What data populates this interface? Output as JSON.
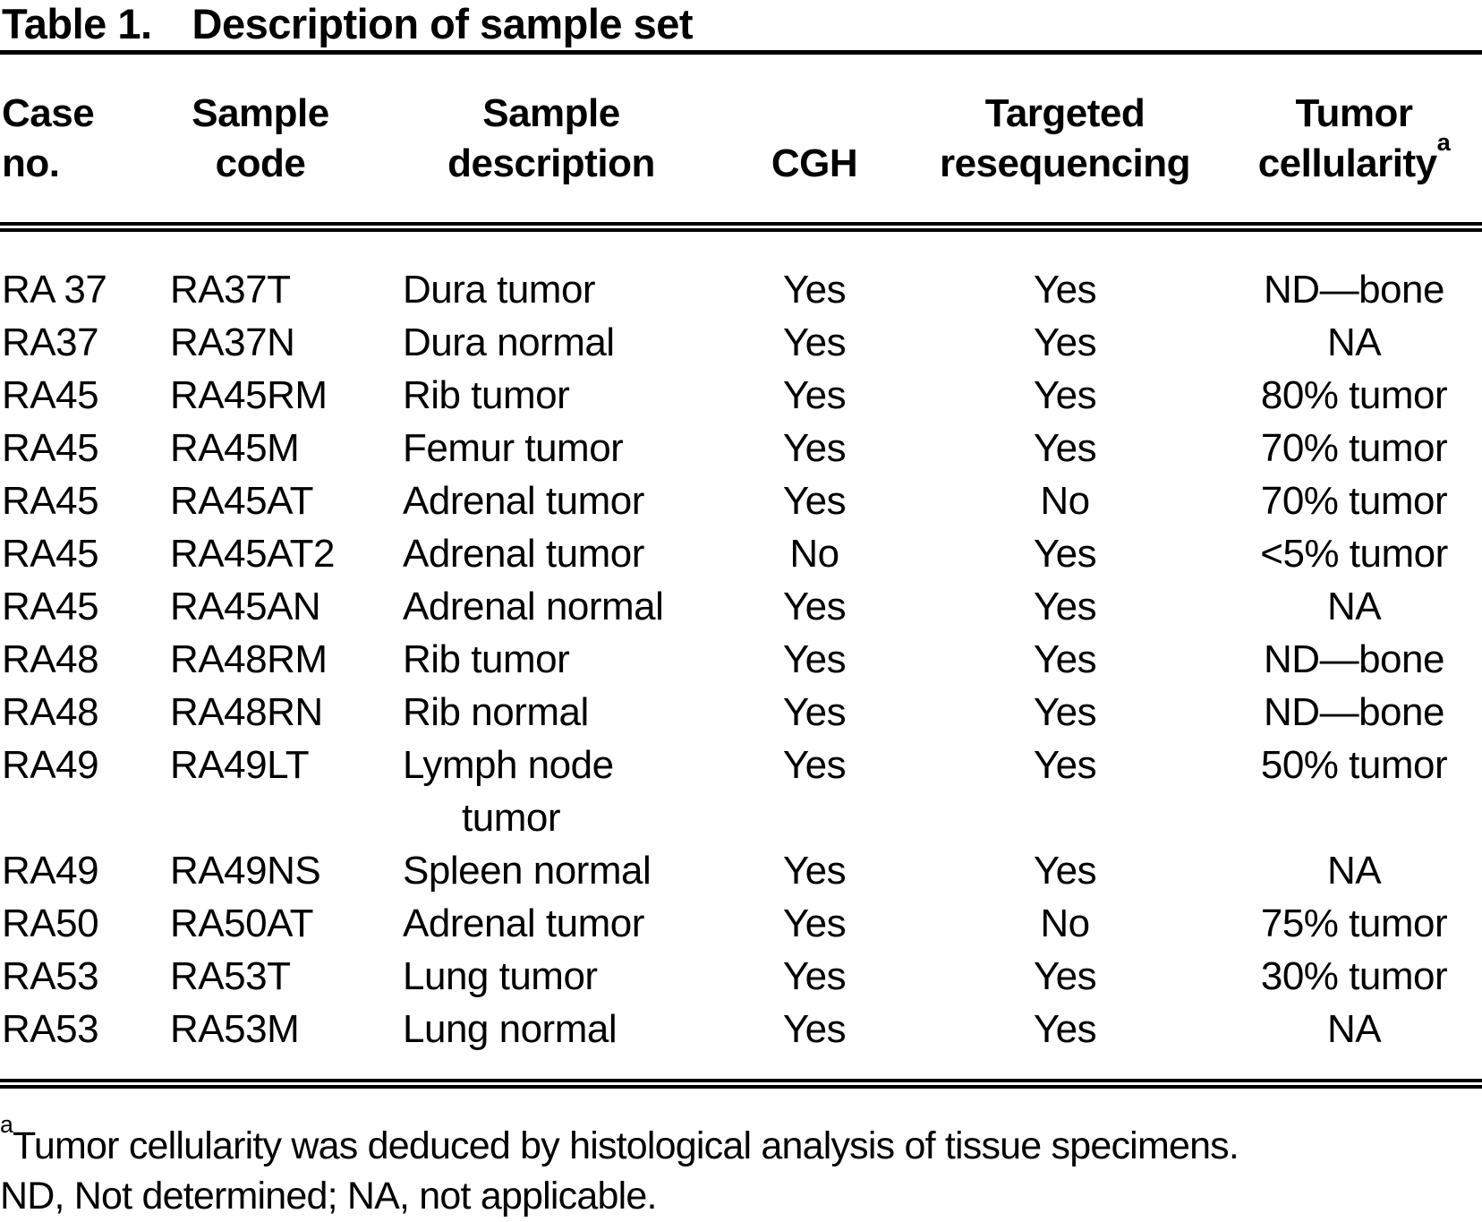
{
  "table": {
    "title_label": "Table 1.",
    "title_text": "Description of sample set",
    "columns": [
      {
        "id": "case_no",
        "label": "Case\nno."
      },
      {
        "id": "sample_code",
        "label": "Sample\ncode"
      },
      {
        "id": "sample_description",
        "label": "Sample\ndescription"
      },
      {
        "id": "cgh",
        "label": "CGH"
      },
      {
        "id": "targeted_resequencing",
        "label": "Targeted\nresequencing"
      },
      {
        "id": "tumor_cellularity",
        "label": "Tumor\ncellularity",
        "superscript": "a"
      }
    ],
    "rows": [
      [
        "RA 37",
        "RA37T",
        "Dura tumor",
        "Yes",
        "Yes",
        "ND—bone"
      ],
      [
        "RA37",
        "RA37N",
        "Dura normal",
        "Yes",
        "Yes",
        "NA"
      ],
      [
        "RA45",
        "RA45RM",
        "Rib tumor",
        "Yes",
        "Yes",
        "80% tumor"
      ],
      [
        "RA45",
        "RA45M",
        "Femur tumor",
        "Yes",
        "Yes",
        "70% tumor"
      ],
      [
        "RA45",
        "RA45AT",
        "Adrenal tumor",
        "Yes",
        "No",
        "70% tumor"
      ],
      [
        "RA45",
        "RA45AT2",
        "Adrenal tumor",
        "No",
        "Yes",
        "<5% tumor"
      ],
      [
        "RA45",
        "RA45AN",
        "Adrenal normal",
        "Yes",
        "Yes",
        "NA"
      ],
      [
        "RA48",
        "RA48RM",
        "Rib tumor",
        "Yes",
        "Yes",
        "ND—bone"
      ],
      [
        "RA48",
        "RA48RN",
        "Rib normal",
        "Yes",
        "Yes",
        "ND—bone"
      ],
      [
        "RA49",
        "RA49LT",
        "Lymph node\ntumor",
        "Yes",
        "Yes",
        "50% tumor"
      ],
      [
        "RA49",
        "RA49NS",
        "Spleen normal",
        "Yes",
        "Yes",
        "NA"
      ],
      [
        "RA50",
        "RA50AT",
        "Adrenal tumor",
        "Yes",
        "No",
        "75% tumor"
      ],
      [
        "RA53",
        "RA53T",
        "Lung tumor",
        "Yes",
        "Yes",
        "30% tumor"
      ],
      [
        "RA53",
        "RA53M",
        "Lung normal",
        "Yes",
        "Yes",
        "NA"
      ]
    ],
    "footnotes": [
      {
        "marker": "a",
        "text": "Tumor cellularity was deduced by histological analysis of tissue specimens."
      },
      {
        "marker": "",
        "text": "ND, Not determined; NA, not applicable."
      }
    ]
  }
}
